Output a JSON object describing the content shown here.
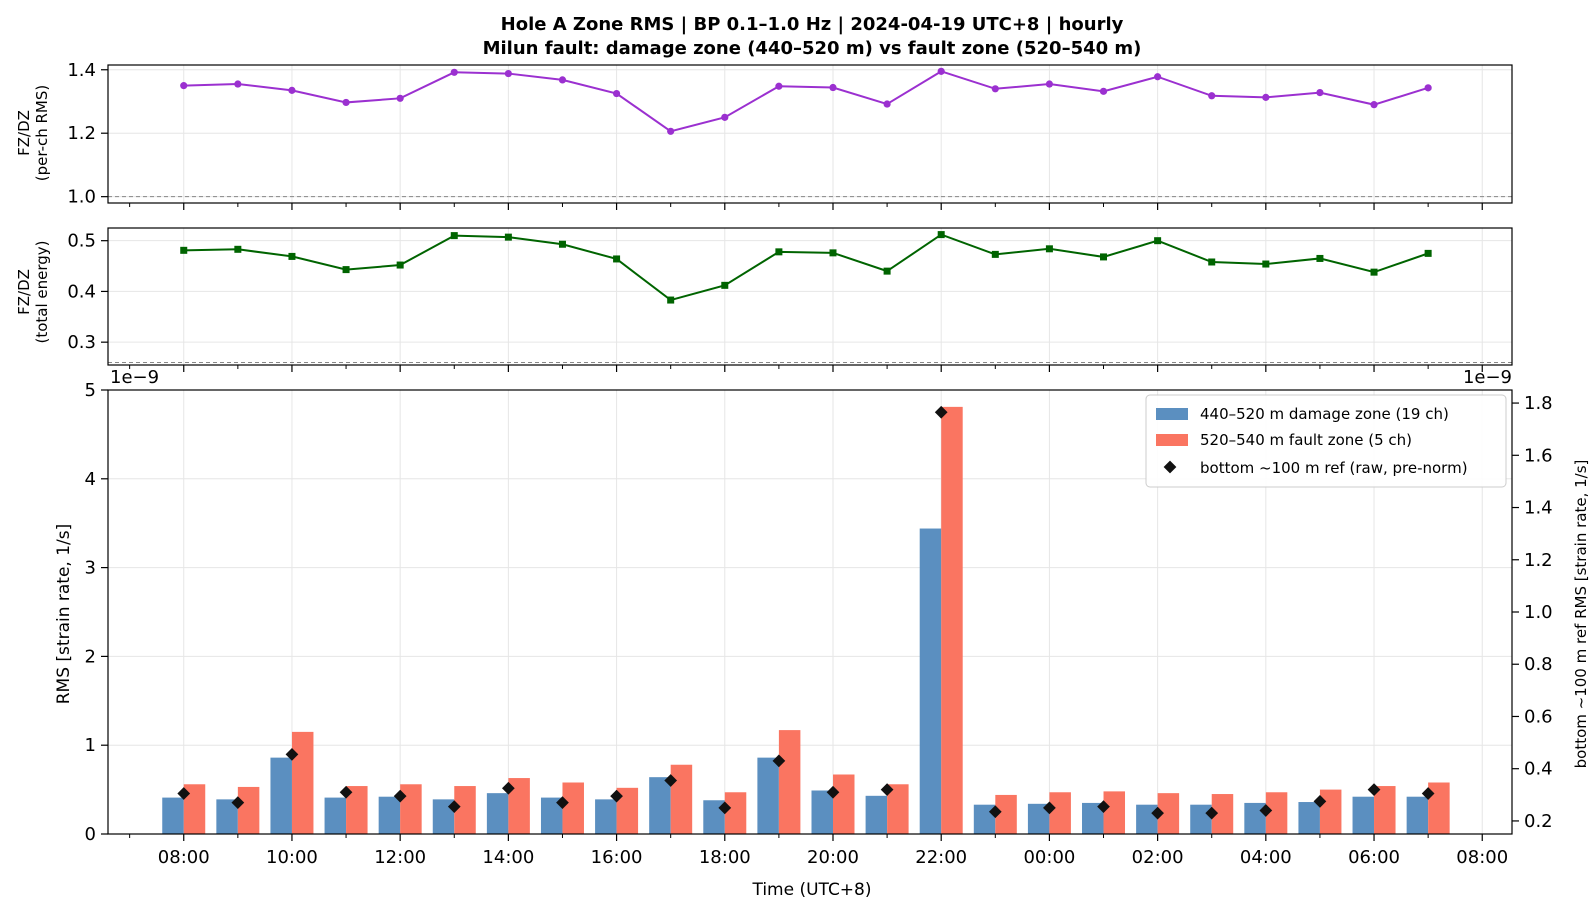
{
  "title_line1": "Hole A Zone RMS  |  BP 0.1–1.0 Hz  |  2024-04-19 UTC+8  |  hourly",
  "title_line2": "Milun fault: damage zone (440–520 m) vs fault zone (520–540 m)",
  "colors": {
    "ratio_rms": "#9b30d0",
    "ratio_energy": "#006400",
    "damage_zone": "#5b8fc0",
    "fault_zone": "#fa7561",
    "ref": "#111111",
    "grid": "#e6e6e6",
    "dashed": "#888888"
  },
  "chart_data": [
    {
      "id": "ratio-rms",
      "type": "line",
      "ylabel_line1": "FZ/DZ",
      "ylabel_line2": "(per-ch RMS)",
      "ylim": [
        0.98,
        1.415
      ],
      "yticks": [
        1.0,
        1.2,
        1.4
      ],
      "ytick_labels": [
        "1.0",
        "1.2",
        "1.4"
      ],
      "reference_line": 1.0,
      "x_hours": [
        8,
        9,
        10,
        11,
        12,
        13,
        14,
        15,
        16,
        17,
        18,
        19,
        20,
        21,
        22,
        23,
        24,
        25,
        26,
        27,
        28,
        29,
        30,
        31
      ],
      "values": [
        1.35,
        1.355,
        1.335,
        1.297,
        1.31,
        1.392,
        1.388,
        1.368,
        1.325,
        1.206,
        1.25,
        1.348,
        1.344,
        1.292,
        1.395,
        1.34,
        1.355,
        1.332,
        1.378,
        1.318,
        1.313,
        1.328,
        1.29,
        1.343
      ]
    },
    {
      "id": "ratio-energy",
      "type": "line",
      "ylabel_line1": "FZ/DZ",
      "ylabel_line2": "(total energy)",
      "ylim": [
        0.255,
        0.525
      ],
      "yticks": [
        0.3,
        0.4,
        0.5
      ],
      "ytick_labels": [
        "0.3",
        "0.4",
        "0.5"
      ],
      "reference_line": 0.26,
      "x_hours": [
        8,
        9,
        10,
        11,
        12,
        13,
        14,
        15,
        16,
        17,
        18,
        19,
        20,
        21,
        22,
        23,
        24,
        25,
        26,
        27,
        28,
        29,
        30,
        31
      ],
      "values": [
        0.481,
        0.483,
        0.469,
        0.443,
        0.452,
        0.51,
        0.507,
        0.493,
        0.464,
        0.383,
        0.412,
        0.478,
        0.476,
        0.44,
        0.512,
        0.473,
        0.484,
        0.468,
        0.5,
        0.458,
        0.454,
        0.465,
        0.438,
        0.475
      ]
    },
    {
      "id": "zone-rms",
      "type": "bar",
      "xlabel": "Time (UTC+8)",
      "ylabel": "RMS  [strain rate, 1/s]",
      "ylabel_right": "bottom ~100 m ref RMS  [strain rate, 1/s]",
      "offset_left": "1e−9",
      "offset_right": "1e−9",
      "ylim": [
        0,
        5.0
      ],
      "yticks": [
        0,
        1,
        2,
        3,
        4,
        5
      ],
      "ytick_labels": [
        "0",
        "1",
        "2",
        "3",
        "4",
        "5"
      ],
      "ylim_right": [
        0.15,
        1.85
      ],
      "yticks_right": [
        0.2,
        0.4,
        0.6,
        0.8,
        1.0,
        1.2,
        1.4,
        1.6,
        1.8
      ],
      "ytick_labels_right": [
        "0.2",
        "0.4",
        "0.6",
        "0.8",
        "1.0",
        "1.2",
        "1.4",
        "1.6",
        "1.8"
      ],
      "xlim_hours": [
        6.6,
        32.55
      ],
      "xticks_hours": [
        8,
        10,
        12,
        14,
        16,
        18,
        20,
        22,
        24,
        26,
        28,
        30,
        32
      ],
      "xtick_labels": [
        "08:00",
        "10:00",
        "12:00",
        "14:00",
        "16:00",
        "18:00",
        "20:00",
        "22:00",
        "00:00",
        "02:00",
        "04:00",
        "06:00",
        "08:00"
      ],
      "x_hours": [
        8,
        9,
        10,
        11,
        12,
        13,
        14,
        15,
        16,
        17,
        18,
        19,
        20,
        21,
        22,
        23,
        24,
        25,
        26,
        27,
        28,
        29,
        30,
        31
      ],
      "series": [
        {
          "name": "440–520 m  damage zone (19 ch)",
          "values": [
            0.41,
            0.39,
            0.86,
            0.41,
            0.42,
            0.39,
            0.46,
            0.41,
            0.39,
            0.64,
            0.38,
            0.86,
            0.49,
            0.43,
            3.44,
            0.33,
            0.34,
            0.35,
            0.33,
            0.33,
            0.35,
            0.36,
            0.42,
            0.42
          ]
        },
        {
          "name": "520–540 m  fault zone (5 ch)",
          "values": [
            0.56,
            0.53,
            1.15,
            0.54,
            0.56,
            0.54,
            0.63,
            0.58,
            0.52,
            0.78,
            0.47,
            1.17,
            0.67,
            0.56,
            4.81,
            0.44,
            0.47,
            0.48,
            0.46,
            0.45,
            0.47,
            0.5,
            0.54,
            0.58
          ]
        },
        {
          "name": "bottom ~100 m ref (raw, pre-norm)",
          "axis": "right",
          "values": [
            0.305,
            0.27,
            0.455,
            0.31,
            0.295,
            0.255,
            0.325,
            0.27,
            0.295,
            0.355,
            0.25,
            0.43,
            0.31,
            0.32,
            1.765,
            0.235,
            0.25,
            0.255,
            0.23,
            0.23,
            0.24,
            0.275,
            0.32,
            0.305
          ]
        }
      ]
    }
  ]
}
